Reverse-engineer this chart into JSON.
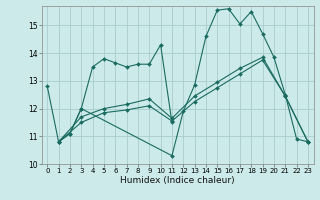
{
  "xlabel": "Humidex (Indice chaleur)",
  "background_color": "#cceaea",
  "grid_color": "#aacccc",
  "line_color": "#1a6b60",
  "xlim": [
    -0.5,
    23.5
  ],
  "ylim": [
    10.0,
    15.7
  ],
  "yticks": [
    10,
    11,
    12,
    13,
    14,
    15
  ],
  "xticks": [
    0,
    1,
    2,
    3,
    4,
    5,
    6,
    7,
    8,
    9,
    10,
    11,
    12,
    13,
    14,
    15,
    16,
    17,
    18,
    19,
    20,
    21,
    22,
    23
  ],
  "lines": [
    {
      "x": [
        0,
        1,
        2,
        3,
        4,
        5,
        6,
        7,
        8,
        9,
        10,
        11
      ],
      "y": [
        12.8,
        10.8,
        11.1,
        12.0,
        13.5,
        13.8,
        13.65,
        13.5,
        13.6,
        13.6,
        14.3,
        11.5
      ]
    },
    {
      "x": [
        1,
        2,
        3,
        11,
        12,
        13,
        14,
        15,
        16,
        17,
        18,
        19,
        20,
        21,
        22,
        23
      ],
      "y": [
        10.8,
        11.1,
        12.0,
        10.3,
        11.9,
        12.85,
        14.6,
        15.55,
        15.6,
        15.05,
        15.5,
        14.7,
        13.85,
        12.5,
        10.9,
        10.8
      ]
    },
    {
      "x": [
        1,
        3,
        5,
        7,
        9,
        11,
        13,
        15,
        17,
        19,
        21,
        23
      ],
      "y": [
        10.8,
        11.5,
        11.85,
        11.95,
        12.1,
        11.55,
        12.25,
        12.75,
        13.25,
        13.75,
        12.45,
        10.8
      ]
    },
    {
      "x": [
        1,
        3,
        5,
        7,
        9,
        11,
        13,
        15,
        17,
        19,
        21,
        23
      ],
      "y": [
        10.8,
        11.7,
        12.0,
        12.15,
        12.35,
        11.65,
        12.45,
        12.95,
        13.45,
        13.85,
        12.45,
        10.8
      ]
    }
  ]
}
